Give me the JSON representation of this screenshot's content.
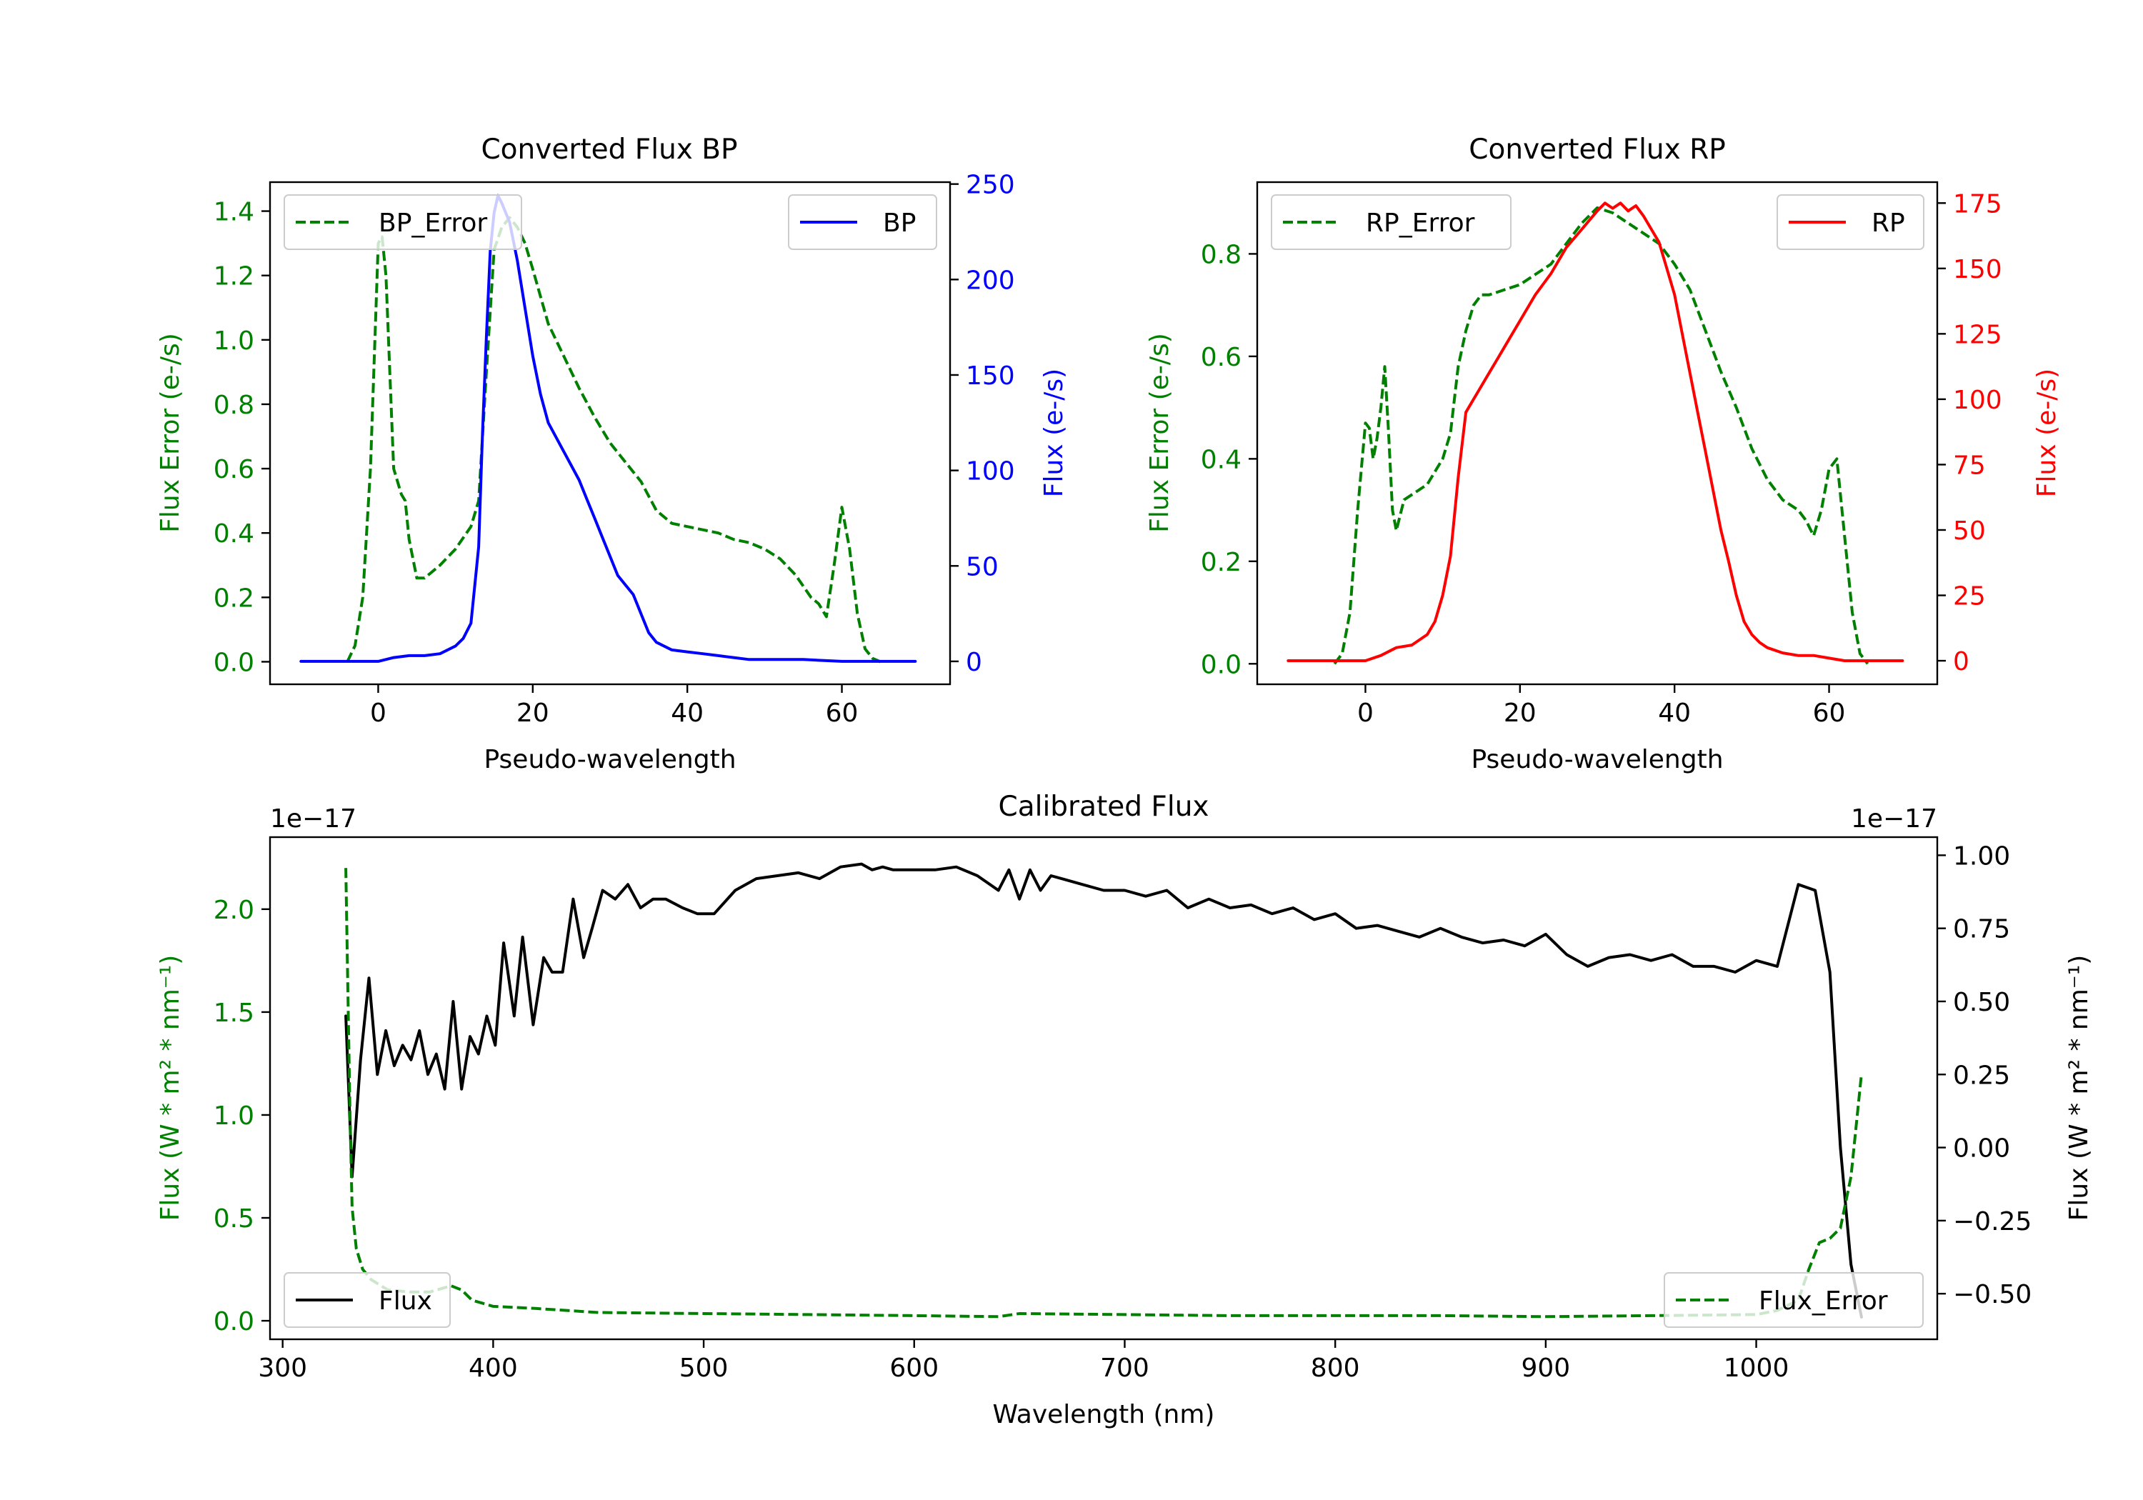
{
  "colors": {
    "error": "#008000",
    "bp": "#0000ff",
    "rp": "#ff0000",
    "flux": "#000000",
    "axis": "#000000"
  },
  "chart_data": [
    {
      "id": "bp",
      "type": "line",
      "title": "Converted Flux BP",
      "xlabel": "Pseudo-wavelength",
      "ylabel_left": "Flux Error (e-/s)",
      "ylabel_right": "Flux (e-/s)",
      "xlim": [
        -14,
        74
      ],
      "ylim_left": [
        -0.07,
        1.49
      ],
      "ylim_right": [
        -12,
        251
      ],
      "xticks": [
        0,
        20,
        40,
        60
      ],
      "xtick_labels": [
        "0",
        "20",
        "40",
        "60"
      ],
      "yticks_left": [
        0.0,
        0.2,
        0.4,
        0.6,
        0.8,
        1.0,
        1.2,
        1.4
      ],
      "ytick_labels_left": [
        "0.0",
        "0.2",
        "0.4",
        "0.6",
        "0.8",
        "1.0",
        "1.2",
        "1.4"
      ],
      "yticks_right": [
        0,
        50,
        100,
        150,
        200,
        250
      ],
      "ytick_labels_right": [
        "0",
        "50",
        "100",
        "150",
        "200",
        "250"
      ],
      "legend_left": {
        "label": "BP_Error",
        "position": "upper-left"
      },
      "legend_right": {
        "label": "BP",
        "position": "upper-right"
      },
      "series": [
        {
          "name": "BP_Error",
          "axis": "left",
          "style": "dashed",
          "color": "#008000",
          "x": [
            -4,
            -3,
            -2,
            -1,
            0,
            0.5,
            1,
            2,
            3,
            3.5,
            4,
            5,
            6,
            8,
            10,
            12,
            13,
            14,
            15,
            16,
            17,
            18,
            19,
            20,
            22,
            24,
            26,
            28,
            30,
            32,
            34,
            36,
            38,
            40,
            42,
            44,
            46,
            48,
            50,
            52,
            54,
            56,
            57,
            58,
            59,
            60,
            61,
            62,
            63,
            64,
            65
          ],
          "y": [
            0.0,
            0.05,
            0.2,
            0.6,
            1.3,
            1.32,
            1.2,
            0.6,
            0.52,
            0.5,
            0.38,
            0.26,
            0.26,
            0.3,
            0.35,
            0.42,
            0.5,
            0.9,
            1.28,
            1.35,
            1.38,
            1.35,
            1.3,
            1.22,
            1.05,
            0.95,
            0.85,
            0.76,
            0.68,
            0.62,
            0.56,
            0.47,
            0.43,
            0.42,
            0.41,
            0.4,
            0.38,
            0.37,
            0.35,
            0.32,
            0.27,
            0.2,
            0.18,
            0.14,
            0.3,
            0.48,
            0.35,
            0.15,
            0.04,
            0.01,
            0.0
          ]
        },
        {
          "name": "BP",
          "axis": "right",
          "style": "solid",
          "color": "#0000ff",
          "x": [
            -10,
            -5,
            0,
            2,
            4,
            6,
            8,
            10,
            11,
            12,
            13,
            13.5,
            14,
            14.5,
            15,
            15.5,
            16,
            17,
            18,
            19,
            20,
            21,
            22,
            24,
            26,
            27,
            28,
            29,
            30,
            31,
            32,
            33,
            34,
            35,
            36,
            38,
            40,
            42,
            44,
            46,
            48,
            50,
            55,
            60,
            65,
            69.5
          ],
          "y": [
            0,
            0,
            0,
            2,
            3,
            3,
            4,
            8,
            12,
            20,
            60,
            120,
            170,
            215,
            235,
            244,
            240,
            230,
            210,
            185,
            160,
            140,
            125,
            110,
            95,
            85,
            75,
            65,
            55,
            45,
            40,
            35,
            25,
            15,
            10,
            6,
            5,
            4,
            3,
            2,
            1,
            1,
            1,
            0,
            0,
            0
          ]
        }
      ]
    },
    {
      "id": "rp",
      "type": "line",
      "title": "Converted Flux RP",
      "xlabel": "Pseudo-wavelength",
      "ylabel_left": "Flux Error (e-/s)",
      "ylabel_right": "Flux (e-/s)",
      "xlim": [
        -14,
        74
      ],
      "ylim_left": [
        -0.04,
        0.94
      ],
      "ylim_right": [
        -9,
        183
      ],
      "xticks": [
        0,
        20,
        40,
        60
      ],
      "xtick_labels": [
        "0",
        "20",
        "40",
        "60"
      ],
      "yticks_left": [
        0.0,
        0.2,
        0.4,
        0.6,
        0.8
      ],
      "ytick_labels_left": [
        "0.0",
        "0.2",
        "0.4",
        "0.6",
        "0.8"
      ],
      "yticks_right": [
        0,
        25,
        50,
        75,
        100,
        125,
        150,
        175
      ],
      "ytick_labels_right": [
        "0",
        "25",
        "50",
        "75",
        "100",
        "125",
        "150",
        "175"
      ],
      "legend_left": {
        "label": "RP_Error",
        "position": "upper-left"
      },
      "legend_right": {
        "label": "RP",
        "position": "upper-right"
      },
      "series": [
        {
          "name": "RP_Error",
          "axis": "left",
          "style": "dashed",
          "color": "#008000",
          "x": [
            -4,
            -3,
            -2,
            -1,
            0,
            0.5,
            1,
            1.5,
            2,
            2.5,
            3,
            3.5,
            4,
            5,
            6,
            8,
            10,
            11,
            12,
            13,
            14,
            15,
            16,
            18,
            20,
            22,
            24,
            26,
            28,
            30,
            32,
            34,
            36,
            38,
            40,
            42,
            44,
            46,
            48,
            50,
            52,
            54,
            56,
            57,
            58,
            59,
            60,
            61,
            62,
            63,
            64,
            65
          ],
          "y": [
            0.0,
            0.02,
            0.1,
            0.3,
            0.47,
            0.46,
            0.4,
            0.44,
            0.5,
            0.58,
            0.45,
            0.3,
            0.26,
            0.32,
            0.33,
            0.35,
            0.4,
            0.45,
            0.58,
            0.65,
            0.7,
            0.72,
            0.72,
            0.73,
            0.74,
            0.76,
            0.78,
            0.82,
            0.86,
            0.89,
            0.88,
            0.86,
            0.84,
            0.82,
            0.78,
            0.73,
            0.65,
            0.57,
            0.5,
            0.42,
            0.36,
            0.32,
            0.3,
            0.28,
            0.25,
            0.3,
            0.38,
            0.4,
            0.25,
            0.1,
            0.02,
            0.0
          ]
        },
        {
          "name": "RP",
          "axis": "right",
          "style": "solid",
          "color": "#ff0000",
          "x": [
            -10,
            -5,
            0,
            2,
            4,
            6,
            8,
            9,
            10,
            11,
            12,
            13,
            14,
            15,
            16,
            17,
            18,
            20,
            22,
            24,
            26,
            28,
            30,
            31,
            32,
            33,
            34,
            35,
            36,
            37,
            38,
            39,
            40,
            41,
            42,
            43,
            44,
            45,
            46,
            47,
            48,
            49,
            50,
            51,
            52,
            54,
            56,
            58,
            60,
            62,
            65,
            69.5
          ],
          "y": [
            0,
            0,
            0,
            2,
            5,
            6,
            10,
            15,
            25,
            40,
            70,
            95,
            100,
            105,
            110,
            115,
            120,
            130,
            140,
            148,
            158,
            165,
            172,
            175,
            173,
            175,
            172,
            174,
            170,
            165,
            160,
            150,
            140,
            125,
            110,
            95,
            80,
            65,
            50,
            38,
            25,
            15,
            10,
            7,
            5,
            3,
            2,
            2,
            1,
            0,
            0,
            0
          ]
        }
      ]
    },
    {
      "id": "cal",
      "type": "line",
      "title": "Calibrated Flux",
      "xlabel": "Wavelength (nm)",
      "ylabel_left": "Flux (W * m² * nm⁻¹)",
      "ylabel_right": "Flux (W * m² * nm⁻¹)",
      "offset_left": "1e−17",
      "offset_right": "1e−17",
      "xlim": [
        294,
        1086
      ],
      "ylim_left": [
        -0.09,
        2.35
      ],
      "ylim_right": [
        -0.656,
        1.062
      ],
      "xticks": [
        300,
        400,
        500,
        600,
        700,
        800,
        900,
        1000
      ],
      "xtick_labels": [
        "300",
        "400",
        "500",
        "600",
        "700",
        "800",
        "900",
        "1000"
      ],
      "yticks_left": [
        0.0,
        0.5,
        1.0,
        1.5,
        2.0
      ],
      "ytick_labels_left": [
        "0.0",
        "0.5",
        "1.0",
        "1.5",
        "2.0"
      ],
      "yticks_right": [
        -0.5,
        -0.25,
        0.0,
        0.25,
        0.5,
        0.75,
        1.0
      ],
      "ytick_labels_right": [
        "−0.50",
        "−0.25",
        "0.00",
        "0.25",
        "0.50",
        "0.75",
        "1.00"
      ],
      "legend_left": {
        "label": "Flux",
        "position": "lower-left"
      },
      "legend_right": {
        "label": "Flux_Error",
        "position": "lower-right"
      },
      "series": [
        {
          "name": "Flux",
          "axis": "right",
          "style": "solid",
          "color": "#000000",
          "x": [
            330,
            333,
            337,
            341,
            345,
            349,
            353,
            357,
            361,
            365,
            369,
            373,
            377,
            381,
            385,
            389,
            393,
            397,
            401,
            405,
            410,
            414,
            419,
            424,
            428,
            433,
            438,
            443,
            447,
            452,
            458,
            464,
            470,
            476,
            482,
            490,
            497,
            505,
            515,
            525,
            535,
            545,
            555,
            565,
            575,
            580,
            585,
            590,
            600,
            610,
            620,
            630,
            640,
            645,
            650,
            655,
            660,
            665,
            670,
            680,
            690,
            700,
            710,
            720,
            730,
            740,
            750,
            760,
            770,
            780,
            790,
            800,
            810,
            820,
            830,
            840,
            850,
            860,
            870,
            880,
            890,
            900,
            910,
            920,
            930,
            940,
            950,
            960,
            970,
            980,
            990,
            1000,
            1010,
            1020,
            1028,
            1035,
            1040,
            1045,
            1050
          ],
          "y": [
            0.45,
            -0.1,
            0.3,
            0.58,
            0.25,
            0.4,
            0.28,
            0.35,
            0.3,
            0.4,
            0.25,
            0.32,
            0.2,
            0.5,
            0.2,
            0.38,
            0.32,
            0.45,
            0.35,
            0.7,
            0.45,
            0.72,
            0.42,
            0.65,
            0.6,
            0.6,
            0.85,
            0.65,
            0.75,
            0.88,
            0.85,
            0.9,
            0.82,
            0.85,
            0.85,
            0.82,
            0.8,
            0.8,
            0.88,
            0.92,
            0.93,
            0.94,
            0.92,
            0.96,
            0.97,
            0.95,
            0.96,
            0.95,
            0.95,
            0.95,
            0.96,
            0.93,
            0.88,
            0.95,
            0.85,
            0.95,
            0.88,
            0.93,
            0.92,
            0.9,
            0.88,
            0.88,
            0.86,
            0.88,
            0.82,
            0.85,
            0.82,
            0.83,
            0.8,
            0.82,
            0.78,
            0.8,
            0.75,
            0.76,
            0.74,
            0.72,
            0.75,
            0.72,
            0.7,
            0.71,
            0.69,
            0.73,
            0.66,
            0.62,
            0.65,
            0.66,
            0.64,
            0.66,
            0.62,
            0.62,
            0.6,
            0.64,
            0.62,
            0.9,
            0.88,
            0.6,
            0.0,
            -0.4,
            -0.58
          ]
        },
        {
          "name": "Flux_Error",
          "axis": "left",
          "style": "dashed",
          "color": "#008000",
          "x": [
            330,
            331,
            332,
            333,
            335,
            338,
            342,
            350,
            360,
            370,
            380,
            385,
            390,
            400,
            420,
            450,
            500,
            550,
            600,
            640,
            650,
            700,
            750,
            800,
            850,
            900,
            950,
            1000,
            1010,
            1020,
            1025,
            1030,
            1035,
            1040,
            1045,
            1050
          ],
          "y": [
            2.2,
            1.6,
            1.0,
            0.55,
            0.35,
            0.25,
            0.2,
            0.15,
            0.14,
            0.14,
            0.17,
            0.15,
            0.1,
            0.07,
            0.06,
            0.04,
            0.035,
            0.03,
            0.025,
            0.02,
            0.035,
            0.03,
            0.025,
            0.025,
            0.025,
            0.02,
            0.025,
            0.03,
            0.05,
            0.1,
            0.25,
            0.38,
            0.4,
            0.45,
            0.7,
            1.2
          ]
        }
      ]
    }
  ]
}
